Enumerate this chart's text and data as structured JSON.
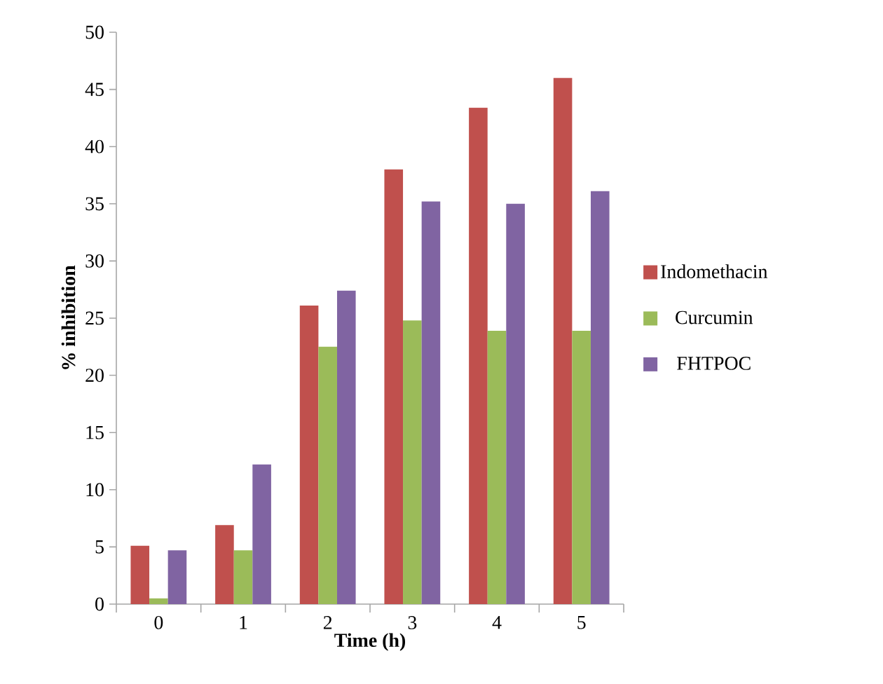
{
  "chart_data": {
    "type": "bar",
    "xlabel": "Time (h)",
    "ylabel": "% inhibition",
    "categories": [
      "0",
      "1",
      "2",
      "3",
      "4",
      "5"
    ],
    "series": [
      {
        "name": "Indomethacin",
        "color": "#c0504d",
        "values": [
          5.1,
          6.9,
          26.1,
          38.0,
          43.4,
          46.0
        ]
      },
      {
        "name": "Curcumin",
        "color": "#9bbb59",
        "values": [
          0.5,
          4.7,
          22.5,
          24.8,
          23.9,
          23.9
        ]
      },
      {
        "name": "FHTPOC",
        "color": "#8064a2",
        "values": [
          4.7,
          12.2,
          27.4,
          35.2,
          35.0,
          36.1
        ]
      }
    ],
    "ylim": [
      0,
      50
    ],
    "yticks": [
      0,
      5,
      10,
      15,
      20,
      25,
      30,
      35,
      40,
      45,
      50
    ],
    "grid": false,
    "legend": "right"
  }
}
